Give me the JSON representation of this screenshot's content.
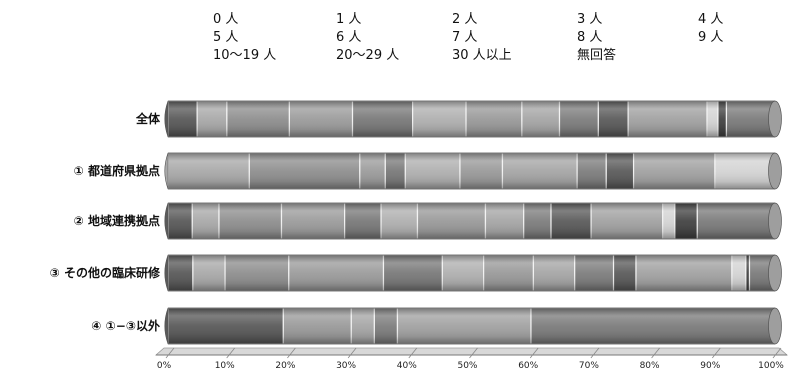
{
  "chart_data": {
    "type": "bar",
    "orientation": "horizontal",
    "stacked": "percent",
    "legend": {
      "placement": "top",
      "items": [
        "0 人",
        "1 人",
        "2 人",
        "3 人",
        "4 人",
        "5 人",
        "6 人",
        "7 人",
        "8 人",
        "9 人",
        "10～19 人",
        "20～29 人",
        "30 人以上",
        "無回答"
      ]
    },
    "series_colors": [
      "#5a5a5a",
      "#a9a9a9",
      "#8f8f8f",
      "#9c9c9c",
      "#7a7a7a",
      "#b0b0b0",
      "#9a9a9a",
      "#a6a6a6",
      "#7e7e7e",
      "#5c5c5c",
      "#a2a2a2",
      "#d4d4d4",
      "#444444",
      "#7c7c7c"
    ],
    "categories": [
      "全体",
      "① 都道府県拠点",
      "② 地域連携拠点",
      "③ その他の臨床研修",
      "④ ①−③以外"
    ],
    "segments": [
      [
        4.8,
        4.9,
        10.3,
        10.4,
        9.9,
        8.8,
        9.2,
        6.2,
        6.4,
        4.9,
        13.0,
        1.8,
        1.4,
        8.0
      ],
      [
        0.0,
        13.4,
        18.2,
        4.2,
        3.3,
        9.0,
        7.0,
        12.3,
        4.8,
        4.5,
        13.4,
        10.0,
        0.0,
        0.0
      ],
      [
        4.0,
        4.4,
        10.3,
        10.4,
        6.0,
        6.0,
        11.2,
        6.3,
        4.5,
        6.6,
        11.8,
        2.0,
        3.7,
        12.8
      ],
      [
        4.1,
        5.3,
        10.5,
        15.6,
        9.7,
        6.8,
        8.2,
        6.8,
        6.4,
        3.7,
        15.8,
        2.3,
        0.6,
        4.2
      ],
      [
        19.0,
        0.0,
        0.0,
        0.0,
        0.0,
        0.0,
        11.2,
        3.8,
        3.8,
        0.0,
        22.0,
        0.0,
        0.0,
        40.2
      ]
    ],
    "x_ticks": [
      "0%",
      "10%",
      "20%",
      "30%",
      "40%",
      "50%",
      "60%",
      "70%",
      "80%",
      "90%",
      "100%"
    ],
    "xlim": [
      0,
      100
    ],
    "grid": false
  }
}
